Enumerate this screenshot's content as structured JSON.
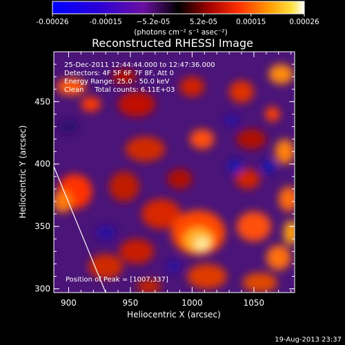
{
  "colorbar": {
    "ticks": [
      "-0.00026",
      "-0.00015",
      "−5.2e-05",
      "5.2e-05",
      "0.00015",
      "0.00026"
    ],
    "unit_label": "(photons cm⁻² s⁻¹ asec⁻²)"
  },
  "chart_data": {
    "type": "heatmap",
    "title": "Reconstructed RHESSI Image",
    "xlabel": "Heliocentric X (arcsec)",
    "ylabel": "Heliocentric Y (arcsec)",
    "xlim": [
      888,
      1083
    ],
    "ylim": [
      297,
      490
    ],
    "x_ticks": [
      "900",
      "950",
      "1000",
      "1050"
    ],
    "y_ticks": [
      "300",
      "350",
      "400",
      "450"
    ],
    "colorbar_range": [
      -0.00026,
      0.00026
    ],
    "colormap": "blue-purple-red-yellow-white",
    "annotations": {
      "time": "25-Dec-2011 12:44:44.000 to 12:47:36.000",
      "detectors": "Detectors: 4F 5F 6F 7F 8F, Att 0",
      "energy": "Energy Range: 25.0 - 50.0 keV",
      "clean": "Clean     Total counts: 6.11E+03",
      "peak": "Position of Peak = [1007,337]"
    },
    "peak": [
      1007,
      337
    ],
    "limb_line": [
      [
        888,
        398
      ],
      [
        930,
        297
      ]
    ]
  },
  "footer": {
    "timestamp": "19-Aug-2013 23:37"
  }
}
